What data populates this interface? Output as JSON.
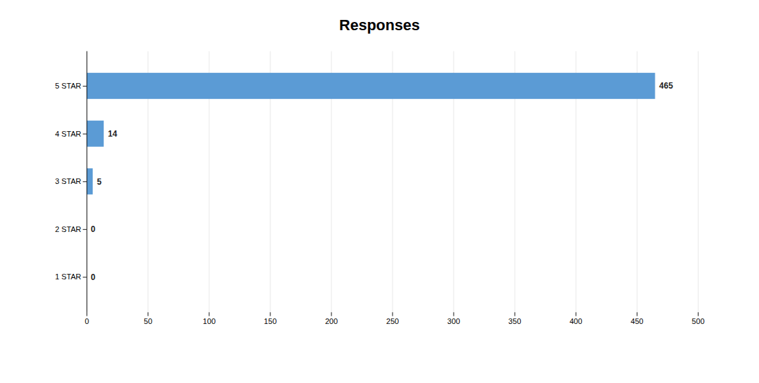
{
  "chart_data": {
    "type": "bar",
    "title": "Responses",
    "categories": [
      "5 STAR",
      "4 STAR",
      "3 STAR",
      "2 STAR",
      "1 STAR"
    ],
    "values": [
      465,
      14,
      5,
      0,
      0
    ],
    "color": "#5b9bd5",
    "orientation": "horizontal",
    "xlim": [
      0,
      500
    ],
    "xticks": [
      0,
      50,
      100,
      150,
      200,
      250,
      300,
      350,
      400,
      450,
      500
    ],
    "grid": true,
    "data_labels": true
  }
}
